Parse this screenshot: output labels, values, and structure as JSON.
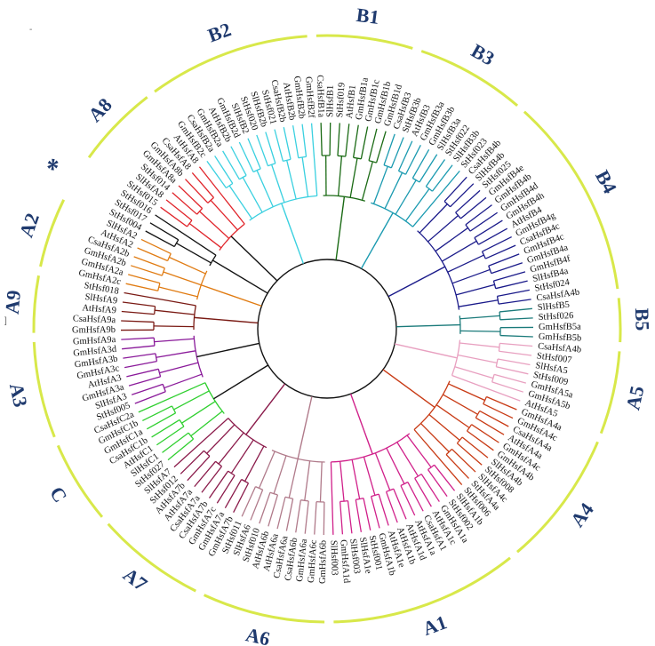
{
  "colors": {
    "ring": "#d8e84a",
    "label": "#1f3a6e",
    "backbone": "#111111",
    "groups": {
      "A8": "#e0242a",
      "A2": "#e07b12",
      "A9": "#7a1a14",
      "A3": "#8a1a9a",
      "C": "#2fcf2f",
      "A7": "#8a1a4a",
      "A6": "#b07a8a",
      "A1": "#d0208a",
      "A4": "#c83a14",
      "A5": "#e8a0c0",
      "B5": "#1a7a7a",
      "B4": "#1a1a8a",
      "B3": "#1a9ab0",
      "B1": "#1a6a14",
      "B2": "#3ad0e0"
    }
  },
  "markers": {
    "corner_left": "-",
    "corner_right": "]"
  },
  "groups": [
    {
      "id": "B1",
      "label": "B1",
      "leaves": [
        "CsaHsfB1a",
        "SlHsfB1",
        "StHsf019",
        "AtHsfB1",
        "GmHsfB1a",
        "GmHsfB1c",
        "GmHsfB1b",
        "GmHsfB1d"
      ]
    },
    {
      "id": "B3",
      "label": "B3",
      "leaves": [
        "CsaHsfB3",
        "StHsfB3b",
        "AtHsfB3",
        "GmHsfB3a",
        "GmHsfB3b",
        "SlHsfB3a",
        "StHsf022",
        "SlHsfB3b",
        "StHsf023"
      ]
    },
    {
      "id": "B4",
      "label": "B4",
      "leaves": [
        "CsaHsfB4b",
        "SlHsfB4b",
        "StHsf025",
        "GmHsfB4e",
        "GmHsfB4b",
        "GmHsfB4d",
        "GmHsfB4h",
        "AtHsfB4",
        "GmHsfB4g",
        "CsaHsfB4c",
        "GmHsfB4c",
        "GmHsfB4a",
        "GmHsfB4f",
        "SlHsfB4a",
        "StHsf024",
        "CsaHsfA4b"
      ]
    },
    {
      "id": "B5",
      "label": "B5",
      "leaves": [
        "SlHsfB5",
        "StHsf026",
        "GmHsfB5a",
        "GmHsfB5b"
      ]
    },
    {
      "id": "A5",
      "label": "A5",
      "leaves": [
        "CsaHsfA4b",
        "StHsf007",
        "SlHsfA5",
        "StHsf009",
        "GmHsfA5a",
        "GmHsfA5b",
        "AtHsfA5"
      ]
    },
    {
      "id": "A4",
      "label": "A4",
      "leaves": [
        "GmHsfA4a",
        "GmHsfA4c",
        "CsaHsfA4a",
        "AtHsfA4a",
        "GmHsfA4c",
        "GmHsfA4b",
        "SlHsfA4b",
        "StHsf008",
        "SlHsfA4c",
        "StHsfA4a",
        "StHsf006"
      ]
    },
    {
      "id": "A1",
      "label": "A1",
      "leaves": [
        "SlHsfA1b",
        "StHsf002",
        "GmHsfA1a",
        "AtHsfA1c",
        "CsaHsfA1",
        "AtHsfA1a",
        "AtHsfA1d",
        "AtHsfA1b",
        "AtHsfA1e",
        "GmHsfA1b",
        "StHsf001",
        "SlHsfA1e",
        "SlHsf003",
        "GmHsfA1d",
        "SlHsf003"
      ]
    },
    {
      "id": "A6",
      "label": "A6",
      "leaves": [
        "GmHsfA6b",
        "GmHsfA6c",
        "GmHsfA6a",
        "CsaHsfA6b",
        "CsaHsfA6a",
        "AtHsfA6a",
        "AtHsfA6b",
        "StHsf010",
        "SlHsfA6",
        "StHsf011"
      ]
    },
    {
      "id": "A7",
      "label": "A7",
      "leaves": [
        "GmHsfA7b",
        "GmHsfA7a",
        "GmHsfA7c",
        "CsaHsfA7b",
        "CsaHsfA7a",
        "AtHsfA7a",
        "AtHsfA7b",
        "StHsf012",
        "SlHsfA7"
      ]
    },
    {
      "id": "C",
      "label": "C",
      "leaves": [
        "StHsf027",
        "SlHsfC1",
        "AtHsfC1",
        "CsaHsfC1b",
        "GmHsfC1a",
        "GmHsfC1b",
        "CsaHsfC2a"
      ]
    },
    {
      "id": "A3",
      "label": "A3",
      "leaves": [
        "StHsf005",
        "SlHsfA3",
        "GmHsfA3a",
        "AtHsfA3",
        "GmHsfA3c",
        "GmHsfA3b",
        "GmHsfA3d",
        "GmHsfA9a"
      ]
    },
    {
      "id": "A9",
      "label": "A9",
      "leaves": [
        "GmHsfA9b",
        "CsaHsfA9a",
        "AtHsfA9",
        "SlHsfA9",
        "StHsf018"
      ]
    },
    {
      "id": "A2",
      "label": "A2",
      "leaves": [
        "GmHsfA2c",
        "GmHsfA2a",
        "GmHsfA2b",
        "CsaHsfA2b",
        "AtHsfA2",
        "SlHsfA2"
      ]
    },
    {
      "id": "STAR",
      "label": "*",
      "leaves": [
        "StHsf004",
        "StHsf017",
        "StHsf016"
      ]
    },
    {
      "id": "A8",
      "label": "A8",
      "leaves": [
        "StHsf015",
        "SlHsfA8",
        "StHsf014",
        "GmHsfA8a",
        "GmHsfA8b",
        "CsaHsfA8",
        "AtHsfA8"
      ]
    },
    {
      "id": "B2",
      "label": "B2",
      "leaves": [
        "GmHsfB2c",
        "CsaHsfB2a",
        "GmHsfB2a",
        "AtHsfB2b",
        "GmHsfB2d",
        "SlHsfB2",
        "StHsf020",
        "SlHsfB2b",
        "StHsf021",
        "CsaHsfB2b",
        "AtHsfB2b",
        "GmHsfB2b",
        "GmHsfB2f"
      ]
    }
  ]
}
